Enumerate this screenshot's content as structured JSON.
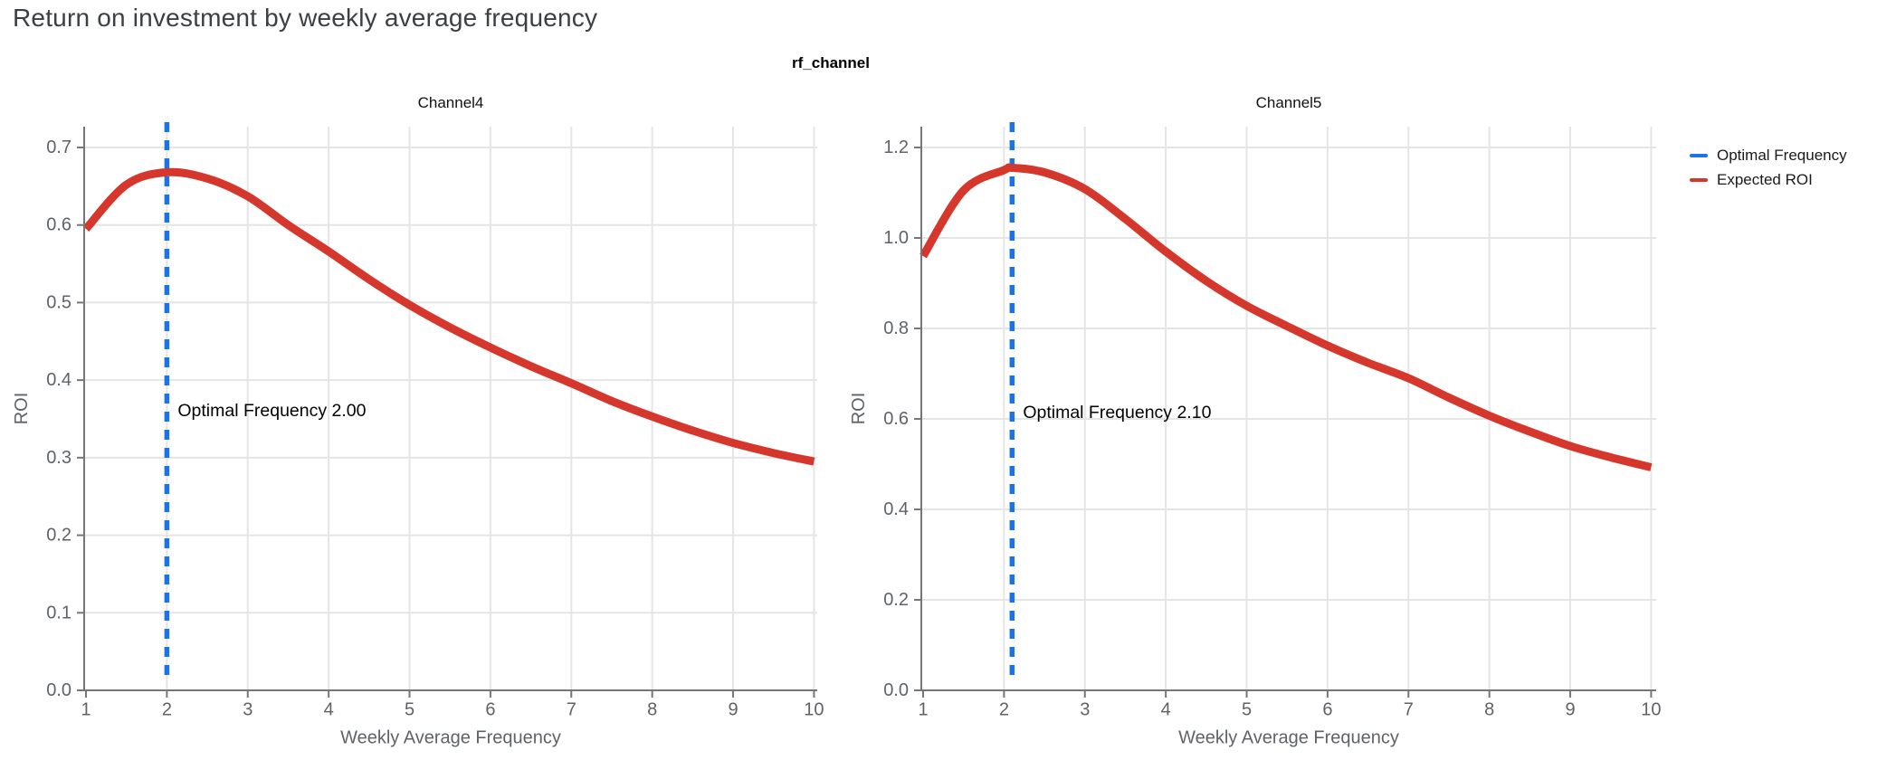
{
  "page_title": "Return on investment by weekly average frequency",
  "figure_title": "rf_channel",
  "legend": {
    "items": [
      {
        "label": "Optimal Frequency",
        "color": "#1A73E8"
      },
      {
        "label": "Expected ROI",
        "color": "#D6372C"
      }
    ]
  },
  "colors": {
    "optimal_frequency_line": "#1A73E8",
    "expected_roi_line": "#D6372C",
    "grid": "#E5E5E5",
    "axis": "#767676",
    "tick_label": "#5F6368",
    "page_title": "#3C4043",
    "annotation": "#000000"
  },
  "chart_data": [
    {
      "type": "line",
      "title": "Channel4",
      "xlabel": "Weekly Average Frequency",
      "ylabel": "ROI",
      "xlim": [
        1,
        10
      ],
      "ylim": [
        0,
        0.7
      ],
      "xticks": [
        1,
        2,
        3,
        4,
        5,
        6,
        7,
        8,
        9,
        10
      ],
      "yticks": [
        0.0,
        0.1,
        0.2,
        0.3,
        0.4,
        0.5,
        0.6,
        0.7
      ],
      "grid": true,
      "optimal_frequency": 2.0,
      "annotation": "Optimal Frequency  2.00",
      "series": [
        {
          "name": "Expected ROI",
          "x": [
            1,
            1.5,
            2,
            2.5,
            3,
            3.5,
            4,
            4.5,
            5,
            5.5,
            6,
            6.5,
            7,
            7.5,
            8,
            8.5,
            9,
            9.5,
            10
          ],
          "y": [
            0.595,
            0.652,
            0.668,
            0.66,
            0.637,
            0.6,
            0.566,
            0.53,
            0.497,
            0.468,
            0.442,
            0.418,
            0.396,
            0.373,
            0.353,
            0.335,
            0.319,
            0.306,
            0.295
          ]
        }
      ]
    },
    {
      "type": "line",
      "title": "Channel5",
      "xlabel": "Weekly Average Frequency",
      "ylabel": "ROI",
      "xlim": [
        1,
        10
      ],
      "ylim": [
        0,
        1.2
      ],
      "xticks": [
        1,
        2,
        3,
        4,
        5,
        6,
        7,
        8,
        9,
        10
      ],
      "yticks": [
        0.0,
        0.2,
        0.4,
        0.6,
        0.8,
        1.0,
        1.2
      ],
      "grid": true,
      "optimal_frequency": 2.1,
      "annotation": "Optimal Frequency  2.10",
      "series": [
        {
          "name": "Expected ROI",
          "x": [
            1,
            1.5,
            2,
            2.1,
            2.5,
            3,
            3.5,
            4,
            4.5,
            5,
            5.5,
            6,
            6.5,
            7,
            7.5,
            8,
            8.5,
            9,
            9.5,
            10
          ],
          "y": [
            0.96,
            1.105,
            1.15,
            1.155,
            1.145,
            1.108,
            1.042,
            0.97,
            0.905,
            0.85,
            0.805,
            0.762,
            0.724,
            0.69,
            0.647,
            0.607,
            0.572,
            0.54,
            0.515,
            0.493
          ]
        }
      ]
    }
  ]
}
